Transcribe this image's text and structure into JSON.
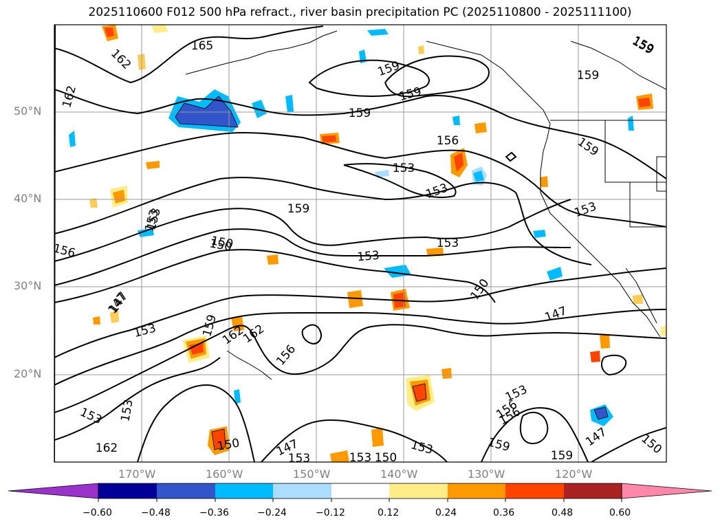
{
  "title": "2025110600 F012 500 hPa refract., river basin precipitation PC (2025110800 - 2025111100)",
  "lat_labels": [
    "50°N",
    "40°N",
    "30°N",
    "20°N"
  ],
  "lon_labels": [
    "170°W",
    "160°W",
    "150°W",
    "140°W",
    "130°W",
    "120°W"
  ],
  "colorbar": {
    "ticks": [
      "−0.60",
      "−0.48",
      "−0.36",
      "−0.24",
      "−0.12",
      "0.12",
      "0.24",
      "0.36",
      "0.48",
      "0.60"
    ],
    "colors": [
      "#9933cc",
      "#000099",
      "#3355cc",
      "#00bbff",
      "#aaddff",
      "#ffffff",
      "#ffee88",
      "#ff9900",
      "#ff4400",
      "#aa2222",
      "#ff88aa"
    ]
  },
  "contour_labels": [
    "165",
    "162",
    "162",
    "162",
    "159",
    "159",
    "159",
    "159",
    "159",
    "159",
    "156",
    "153",
    "153",
    "153",
    "153",
    "153",
    "159",
    "156",
    "150",
    "153",
    "150",
    "147",
    "147",
    "153",
    "159",
    "162",
    "156",
    "147",
    "153",
    "153",
    "156",
    "153",
    "162",
    "150",
    "150",
    "147",
    "153",
    "150",
    "153",
    "153",
    "156",
    "159",
    "159",
    "153",
    "150",
    "147",
    "159"
  ]
}
